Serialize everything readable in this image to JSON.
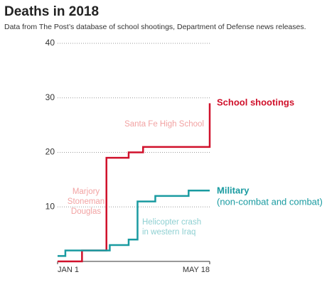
{
  "chart_data": {
    "type": "step-line",
    "title": "Deaths in 2018",
    "subtitle": "Data from The Post’s database of school shootings, Department of Defense news releases.",
    "xlim": [
      "2018-01-01",
      "2018-05-18"
    ],
    "xticks": [
      {
        "value": "2018-01-01",
        "label": "JAN 1"
      },
      {
        "value": "2018-05-18",
        "label": "MAY 18"
      }
    ],
    "ylim": [
      0,
      40
    ],
    "yticks": [
      10,
      20,
      30,
      40
    ],
    "grid": true,
    "series": [
      {
        "name": "School shootings",
        "color": "#d0112b",
        "x": [
          "2018-01-01",
          "2018-01-23",
          "2018-02-14",
          "2018-03-06",
          "2018-03-19",
          "2018-05-18"
        ],
        "values": [
          0,
          2,
          19,
          20,
          21,
          29
        ]
      },
      {
        "name": "Military",
        "sublabel": "(non-combat and combat)",
        "color": "#1a9ba1",
        "x": [
          "2018-01-01",
          "2018-01-08",
          "2018-02-17",
          "2018-03-06",
          "2018-03-14",
          "2018-03-30",
          "2018-04-29",
          "2018-05-18"
        ],
        "values": [
          1,
          2,
          3,
          4,
          11,
          12,
          13,
          13
        ]
      }
    ],
    "annotations": [
      {
        "lines": [
          "Santa Fe High School"
        ],
        "color": "#f2a3a3"
      },
      {
        "lines": [
          "Marjory",
          "Stoneman",
          "Douglas"
        ],
        "color": "#f2a3a3"
      },
      {
        "lines": [
          "Helicopter crash",
          "in western Iraq"
        ],
        "color": "#8fd0d2"
      }
    ]
  }
}
